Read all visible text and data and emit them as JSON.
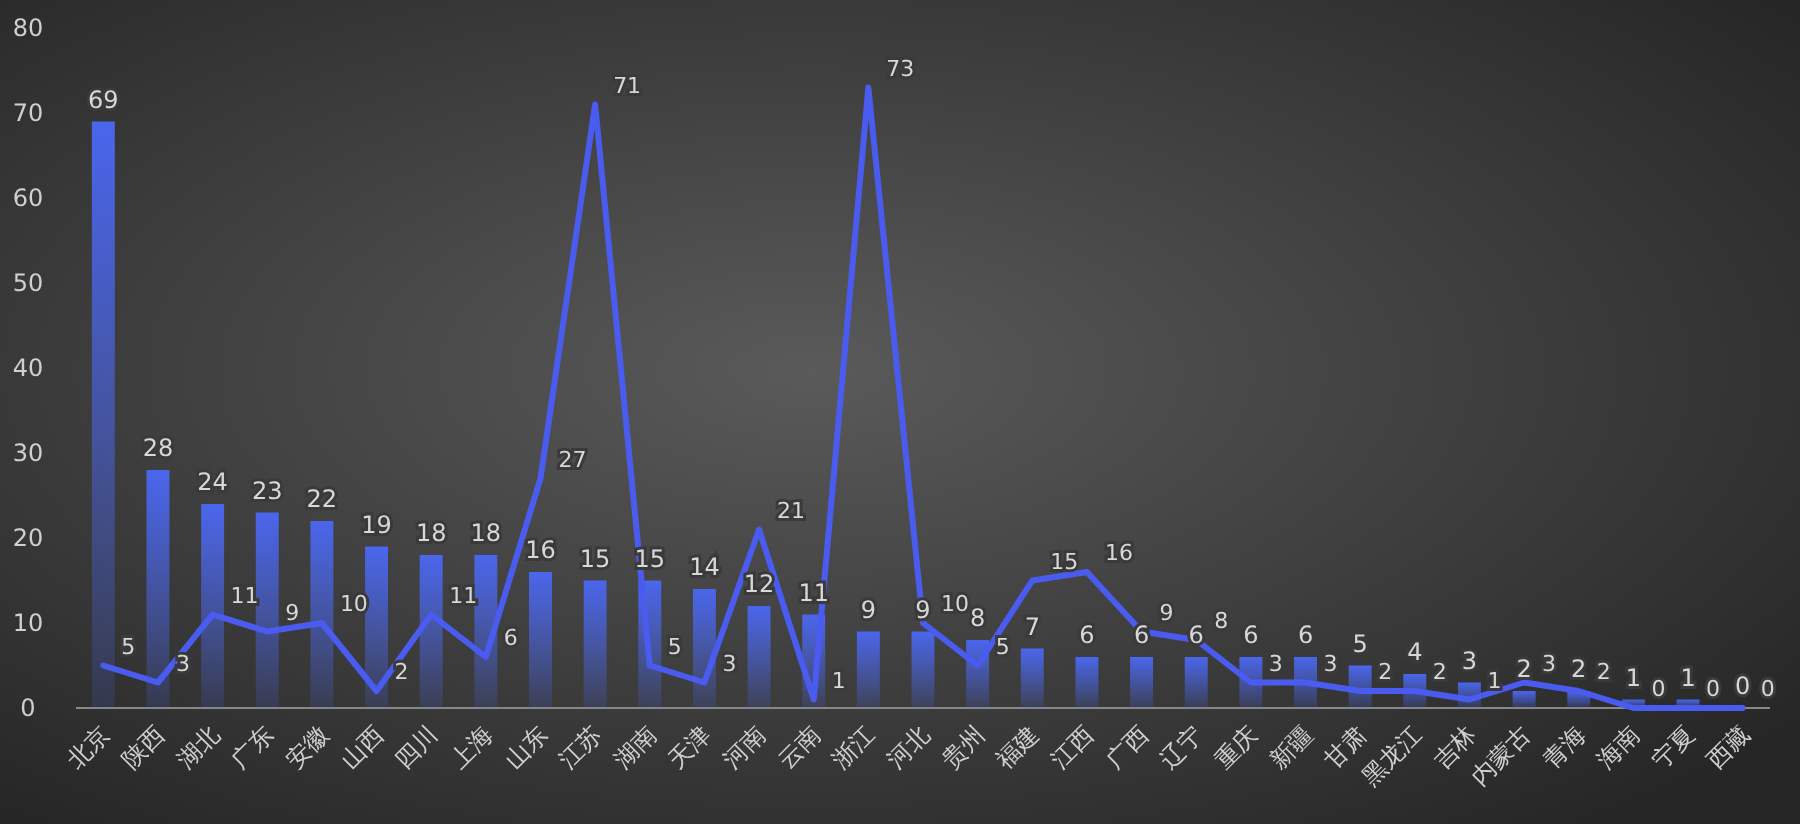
{
  "chart_data": {
    "type": "bar",
    "categories": [
      "北京",
      "陕西",
      "湖北",
      "广东",
      "安徽",
      "山西",
      "四川",
      "上海",
      "山东",
      "江苏",
      "湖南",
      "天津",
      "河南",
      "云南",
      "浙江",
      "河北",
      "贵州",
      "福建",
      "江西",
      "广西",
      "辽宁",
      "重庆",
      "新疆",
      "甘肃",
      "黑龙江",
      "吉林",
      "内蒙古",
      "青海",
      "海南",
      "宁夏",
      "西藏"
    ],
    "series": [
      {
        "color": "#4a66ec",
        "values": [
          69,
          28,
          24,
          23,
          22,
          19,
          18,
          18,
          16,
          15,
          15,
          14,
          12,
          11,
          9,
          9,
          8,
          7,
          6,
          6,
          6,
          6,
          6,
          5,
          4,
          3,
          2,
          2,
          1,
          1,
          0
        ]
      },
      {
        "type": "line",
        "color": "#4a5cf0",
        "values": [
          5,
          3,
          11,
          9,
          10,
          2,
          11,
          6,
          27,
          71,
          5,
          3,
          21,
          1,
          73,
          10,
          5,
          15,
          16,
          9,
          8,
          3,
          3,
          2,
          2,
          1,
          3,
          2,
          0,
          0,
          0
        ]
      }
    ],
    "ylim": [
      0,
      80
    ],
    "yticks": [
      0,
      10,
      20,
      30,
      40,
      50,
      60,
      70,
      80
    ],
    "data_labels": true,
    "grid": false,
    "marker": "none",
    "line_style": "solid"
  }
}
